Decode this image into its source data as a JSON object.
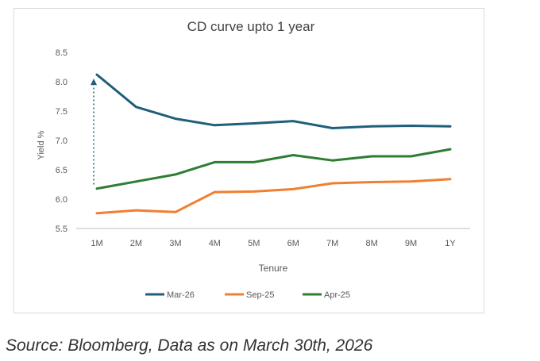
{
  "chart_data": {
    "type": "line",
    "title": "CD curve upto 1 year",
    "xlabel": "Tenure",
    "ylabel": "Yield %",
    "categories": [
      "1M",
      "2M",
      "3M",
      "4M",
      "5M",
      "6M",
      "7M",
      "8M",
      "9M",
      "1Y"
    ],
    "ylim": [
      5.5,
      8.5
    ],
    "yticks": [
      "5.5",
      "6.0",
      "6.5",
      "7.0",
      "7.5",
      "8.0",
      "8.5"
    ],
    "grid": false,
    "legend_position": "bottom",
    "series": [
      {
        "name": "Mar-26",
        "color": "#1f5f7a",
        "values": [
          8.12,
          7.57,
          7.37,
          7.26,
          7.29,
          7.33,
          7.21,
          7.24,
          7.25,
          7.24
        ]
      },
      {
        "name": "Sep-25",
        "color": "#f07f32",
        "values": [
          5.76,
          5.81,
          5.78,
          6.12,
          6.13,
          6.17,
          6.27,
          6.29,
          6.3,
          6.34
        ]
      },
      {
        "name": "Apr-25",
        "color": "#2e7d32",
        "values": [
          6.18,
          6.3,
          6.42,
          6.63,
          6.63,
          6.75,
          6.66,
          6.73,
          6.73,
          6.85
        ]
      }
    ],
    "annotations": [
      {
        "type": "dotted-arrow",
        "category": "1M",
        "from": 6.25,
        "to": 8.12,
        "color": "#1f5f7a"
      }
    ]
  },
  "source": "Source: Bloomberg, Data as on March 30th, 2026"
}
